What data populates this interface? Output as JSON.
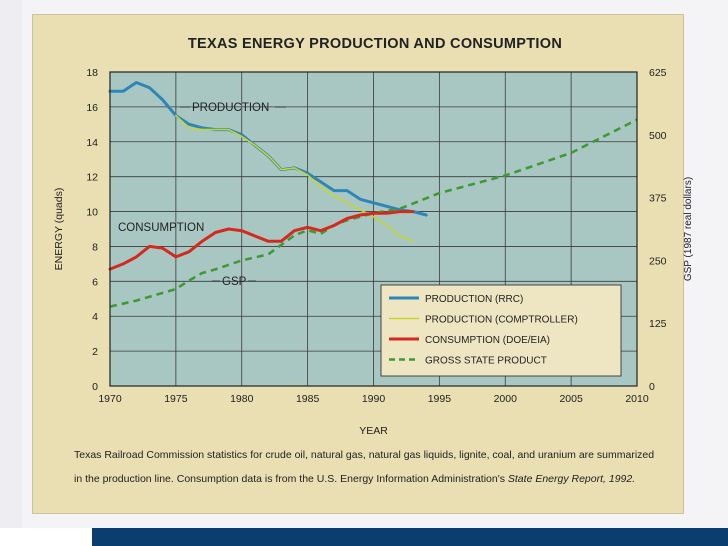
{
  "chart_data": {
    "type": "line",
    "title": "TEXAS ENERGY PRODUCTION AND CONSUMPTION",
    "xlabel": "YEAR",
    "ylabel": "ENERGY (quads)",
    "y2label": "GSP (1987 real dollars)",
    "xlim": [
      1970,
      2010
    ],
    "ylim": [
      0,
      18
    ],
    "y2lim": [
      0,
      625
    ],
    "x_ticks": [
      1970,
      1975,
      1980,
      1985,
      1990,
      1995,
      2000,
      2005,
      2010
    ],
    "y_ticks": [
      0,
      2,
      4,
      6,
      8,
      10,
      12,
      14,
      16,
      18
    ],
    "y2_ticks": [
      0,
      125,
      250,
      375,
      500,
      625
    ],
    "grid": true,
    "legend_position": "bottom-right",
    "annotations": [
      "PRODUCTION",
      "CONSUMPTION",
      "GSP"
    ],
    "series": [
      {
        "name": "PRODUCTION (RRC)",
        "axis": "left",
        "color": "#2e86b8",
        "style": "solid",
        "x": [
          1970,
          1971,
          1972,
          1973,
          1974,
          1975,
          1976,
          1977,
          1978,
          1979,
          1980,
          1981,
          1982,
          1983,
          1984,
          1985,
          1986,
          1987,
          1988,
          1989,
          1990,
          1991,
          1992,
          1993,
          1994
        ],
        "y": [
          16.9,
          16.9,
          17.4,
          17.1,
          16.4,
          15.5,
          15.0,
          14.8,
          14.7,
          14.7,
          14.4,
          13.8,
          13.2,
          12.4,
          12.5,
          12.2,
          11.7,
          11.2,
          11.2,
          10.7,
          10.5,
          10.3,
          10.1,
          10.0,
          9.8
        ]
      },
      {
        "name": "PRODUCTION (COMPTROLLER)",
        "axis": "left",
        "color": "#c6d62e",
        "style": "solid",
        "x": [
          1975,
          1976,
          1977,
          1978,
          1979,
          1980,
          1981,
          1982,
          1983,
          1984,
          1985,
          1986,
          1987,
          1988,
          1989,
          1990,
          1991,
          1992,
          1993
        ],
        "y": [
          15.5,
          14.8,
          14.7,
          14.7,
          14.7,
          14.3,
          13.8,
          13.2,
          12.4,
          12.5,
          12.1,
          11.4,
          10.9,
          10.5,
          10.1,
          9.7,
          9.2,
          8.6,
          8.3
        ]
      },
      {
        "name": "CONSUMPTION (DOE/EIA)",
        "axis": "left",
        "color": "#d42a1e",
        "style": "solid",
        "x": [
          1970,
          1971,
          1972,
          1973,
          1974,
          1975,
          1976,
          1977,
          1978,
          1979,
          1980,
          1981,
          1982,
          1983,
          1984,
          1985,
          1986,
          1987,
          1988,
          1989,
          1990,
          1991,
          1992,
          1993
        ],
        "y": [
          6.7,
          7.0,
          7.4,
          8.0,
          7.9,
          7.4,
          7.7,
          8.3,
          8.8,
          9.0,
          8.9,
          8.6,
          8.3,
          8.3,
          8.9,
          9.1,
          8.9,
          9.2,
          9.6,
          9.8,
          9.9,
          9.9,
          10.0,
          10.0
        ]
      },
      {
        "name": "GROSS STATE PRODUCT",
        "axis": "right",
        "color": "#3f9a34",
        "style": "dashed",
        "x": [
          1970,
          1972,
          1975,
          1976,
          1977,
          1978,
          1980,
          1982,
          1984,
          1985,
          1986,
          1987,
          1988,
          1990,
          1992,
          1995,
          2000,
          2005,
          2010
        ],
        "y": [
          158,
          170,
          193,
          210,
          225,
          232,
          250,
          262,
          300,
          310,
          303,
          320,
          330,
          344,
          353,
          384,
          419,
          464,
          530
        ]
      }
    ]
  },
  "caption": {
    "line1_pre": "Texas Railroad Commission statistics for crude oil, natural gas, natural gas liquids, lignite, coal, and uranium are summarized",
    "line2_pre": "in the production line. Consumption data is from the U.S. Energy Information Administration's ",
    "line2_italic": "State Energy Report, 1992.",
    "line2_post": ""
  }
}
